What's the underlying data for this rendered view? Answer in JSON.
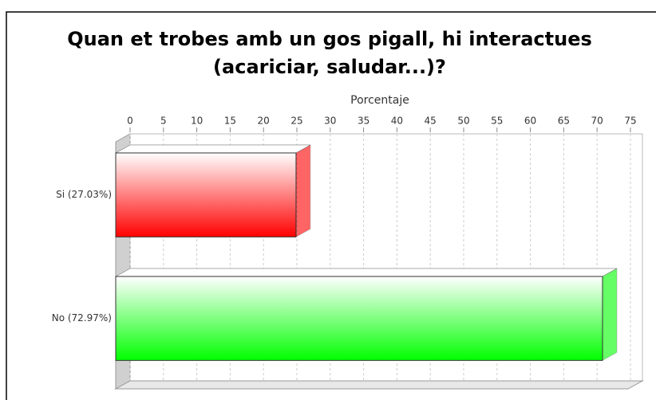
{
  "chart_data": {
    "type": "bar3d_horizontal",
    "title": "Quan et trobes amb un gos pigall, hi interactues (acariciar, saludar...)?",
    "x_label": "Porcentaje",
    "categories": [
      "Si (27.03%)",
      "No (72.97%)"
    ],
    "values": [
      27.03,
      72.97
    ],
    "colors": [
      "#ff0000",
      "#00ff00"
    ],
    "xlim": [
      0,
      76.8
    ],
    "xticks": [
      0,
      5,
      10,
      15,
      20,
      25,
      30,
      35,
      40,
      45,
      50,
      55,
      60,
      65,
      70,
      75
    ],
    "grid": true
  }
}
